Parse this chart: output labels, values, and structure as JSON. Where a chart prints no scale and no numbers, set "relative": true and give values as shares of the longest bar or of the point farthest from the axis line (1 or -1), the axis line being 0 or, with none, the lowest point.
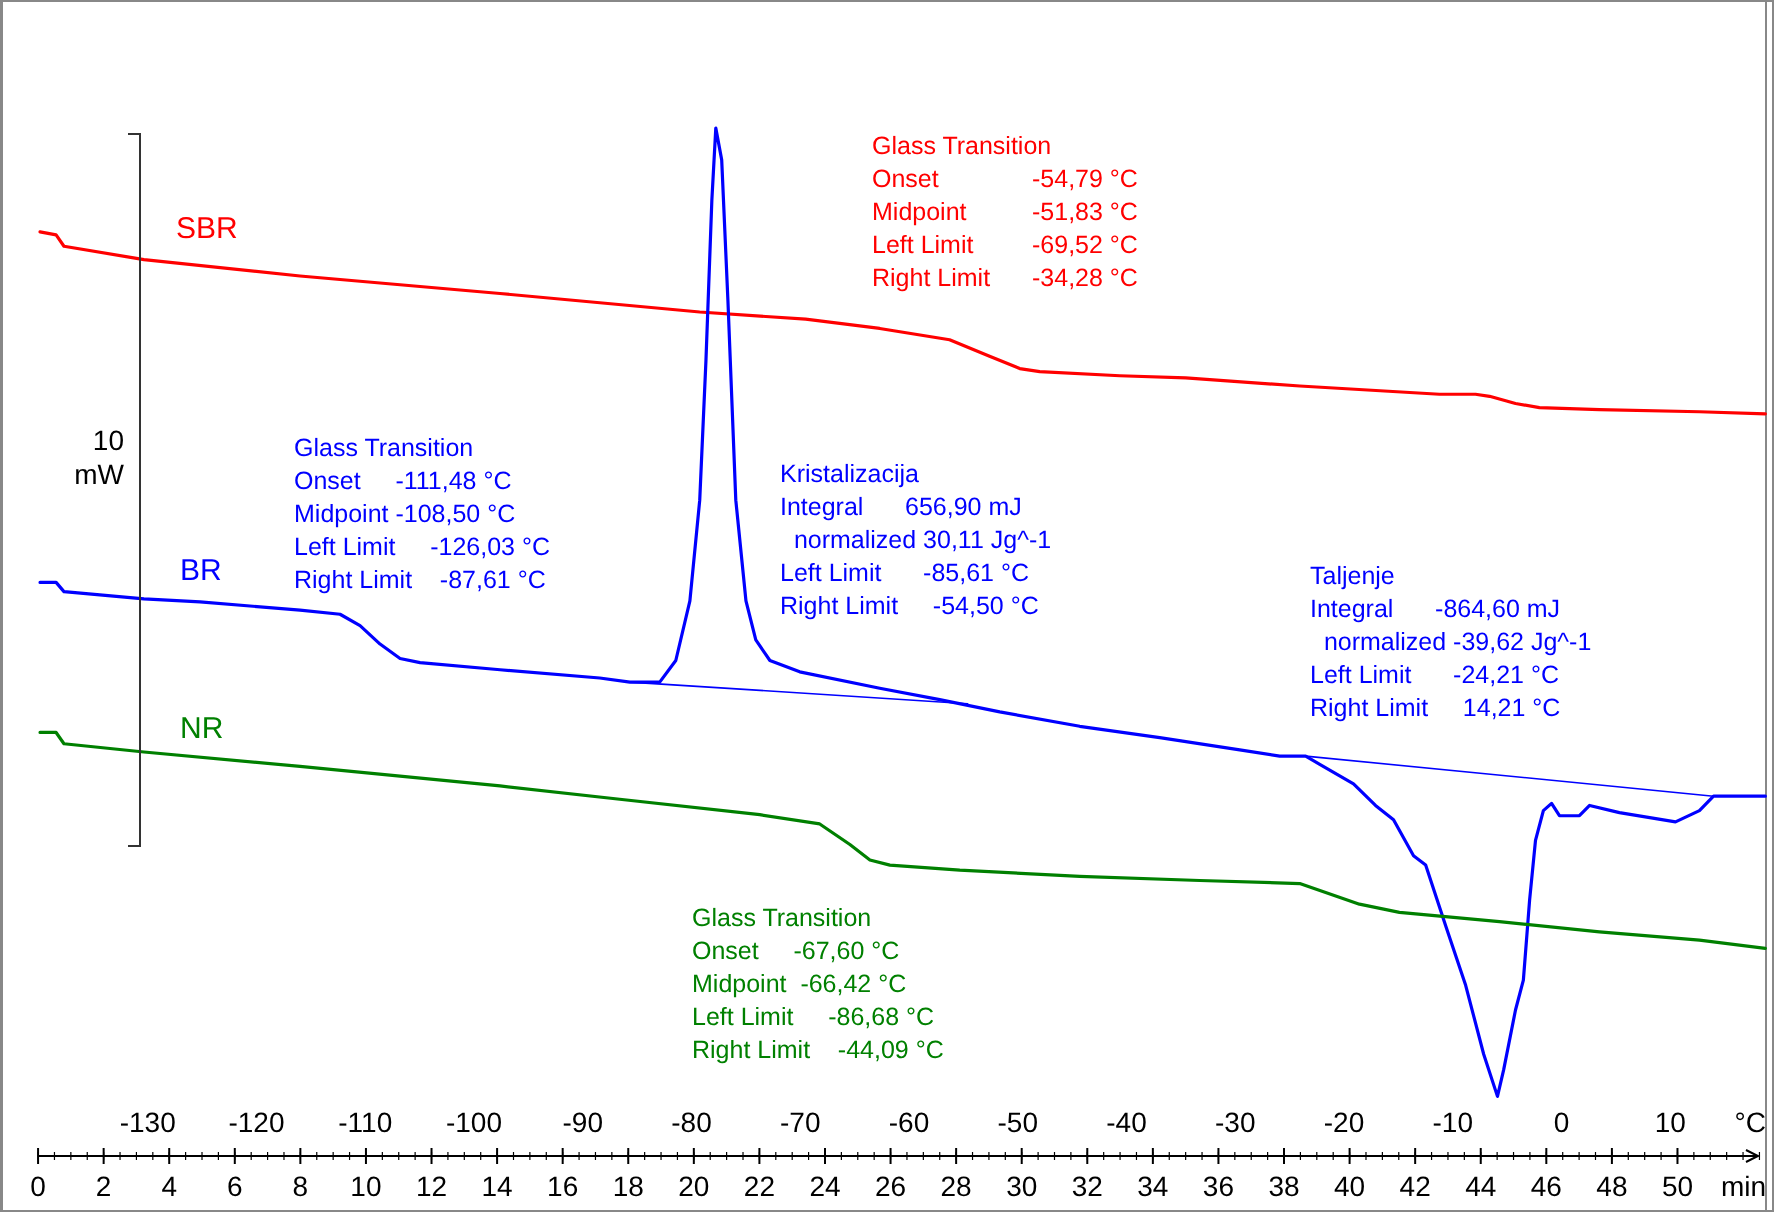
{
  "chart_data": {
    "type": "line",
    "relative": true,
    "legend": false,
    "marker": "none",
    "line_style": "solid",
    "xlabel": "min",
    "x2label": "°C",
    "xlim": [
      -1.1,
      52.7
    ],
    "xticks": [
      0,
      2,
      4,
      6,
      8,
      10,
      12,
      14,
      16,
      18,
      20,
      22,
      24,
      26,
      28,
      30,
      32,
      34,
      36,
      38,
      40,
      42,
      44,
      46,
      48,
      50
    ],
    "x2lim": [
      -143.4,
      18.8
    ],
    "x2ticks": [
      -130,
      -120,
      -110,
      -100,
      -90,
      -80,
      -70,
      -60,
      -50,
      -40,
      -30,
      -20,
      -10,
      0,
      10
    ],
    "series": [
      {
        "name": "SBR",
        "color": "#ff0000",
        "x": [
          0.06,
          0.55,
          0.79,
          3.23,
          7.99,
          14.09,
          20.18,
          23.41,
          25.67,
          27.8,
          29.02,
          29.94,
          30.55,
          32.99,
          35,
          38.48,
          42.74,
          43.84,
          44.27,
          45.06,
          45.79,
          47.62,
          50.67,
          52.68
        ],
        "values": [
          0.899,
          0.896,
          0.885,
          0.872,
          0.856,
          0.839,
          0.821,
          0.814,
          0.805,
          0.794,
          0.778,
          0.766,
          0.763,
          0.759,
          0.757,
          0.749,
          0.741,
          0.741,
          0.739,
          0.732,
          0.728,
          0.726,
          0.724,
          0.722
        ]
      },
      {
        "name": "BR",
        "color": "#0000ff",
        "x": [
          0.06,
          0.55,
          0.79,
          3.23,
          4.94,
          7.99,
          9.21,
          9.82,
          10.43,
          11.04,
          11.65,
          14.09,
          17.13,
          18.05,
          18.96,
          19.45,
          19.88,
          20.18,
          20.37,
          20.55,
          20.67,
          20.85,
          21.04,
          21.28,
          21.59,
          21.89,
          22.32,
          23.23,
          25.67,
          27.5,
          29.33,
          31.77,
          34.21,
          36.65,
          37.87,
          38.66,
          39.09,
          40.12,
          40.79,
          41.34,
          41.95,
          42.32,
          42.93,
          43.54,
          44.09,
          44.51,
          44.7,
          45.06,
          45.3,
          45.49,
          45.67,
          45.91,
          46.16,
          46.4,
          47.01,
          47.32,
          48.23,
          49.94,
          50.67,
          51.1,
          51.89,
          52.68
        ],
        "values": [
          0.558,
          0.558,
          0.549,
          0.542,
          0.539,
          0.531,
          0.527,
          0.516,
          0.498,
          0.484,
          0.48,
          0.473,
          0.465,
          0.461,
          0.461,
          0.482,
          0.54,
          0.638,
          0.774,
          0.93,
          1,
          0.969,
          0.832,
          0.638,
          0.54,
          0.502,
          0.482,
          0.471,
          0.455,
          0.444,
          0.432,
          0.418,
          0.407,
          0.395,
          0.389,
          0.389,
          0.381,
          0.362,
          0.341,
          0.327,
          0.292,
          0.283,
          0.224,
          0.166,
          0.099,
          0.058,
          0.084,
          0.142,
          0.171,
          0.249,
          0.307,
          0.336,
          0.343,
          0.331,
          0.331,
          0.341,
          0.334,
          0.325,
          0.336,
          0.35,
          0.35,
          0.35
        ]
      },
      {
        "name": "NR",
        "color": "#008000",
        "x": [
          0.06,
          0.55,
          0.79,
          3.23,
          7.99,
          14.09,
          17.74,
          22.01,
          23.84,
          24.76,
          25.37,
          25.98,
          28.11,
          31.77,
          35.43,
          38.48,
          40.3,
          41.52,
          44.57,
          47.62,
          50.67,
          52.68
        ],
        "values": [
          0.412,
          0.412,
          0.401,
          0.393,
          0.379,
          0.36,
          0.347,
          0.332,
          0.323,
          0.303,
          0.288,
          0.283,
          0.278,
          0.272,
          0.268,
          0.265,
          0.245,
          0.237,
          0.228,
          0.218,
          0.21,
          0.202
        ]
      },
      {
        "color": "#0000ff",
        "x": [
          18.05,
          28.35
        ],
        "values": [
          0.461,
          0.44
        ]
      },
      {
        "color": "#0000ff",
        "x": [
          38.66,
          51.1
        ],
        "values": [
          0.389,
          0.35
        ]
      }
    ],
    "annotations": [
      "Glass Transition\nOnset\t-54,79 °C\nMidpoint\t-51,83 °C\nLeft Limit\t-69,52 °C\nRight Limit\t-34,28 °C",
      "Glass Transition\nOnset     -111,48 °C\nMidpoint -108,50 °C\nLeft Limit     -126,03 °C\nRight Limit    -87,61 °C",
      "Kristalizacija\nIntegral      656,90 mJ\n  normalized 30,11 Jg^-1\nLeft Limit      -85,61 °C\nRight Limit     -54,50 °C",
      "Taljenje\nIntegral      -864,60 mJ\n  normalized -39,62 Jg^-1\nLeft Limit      -24,21 °C\nRight Limit     14,21 °C",
      "Glass Transition\nOnset     -67,60 °C\nMidpoint  -66,42 °C\nLeft Limit     -86,68 °C\nRight Limit    -44,09 °C",
      "10\nmW"
    ]
  }
}
